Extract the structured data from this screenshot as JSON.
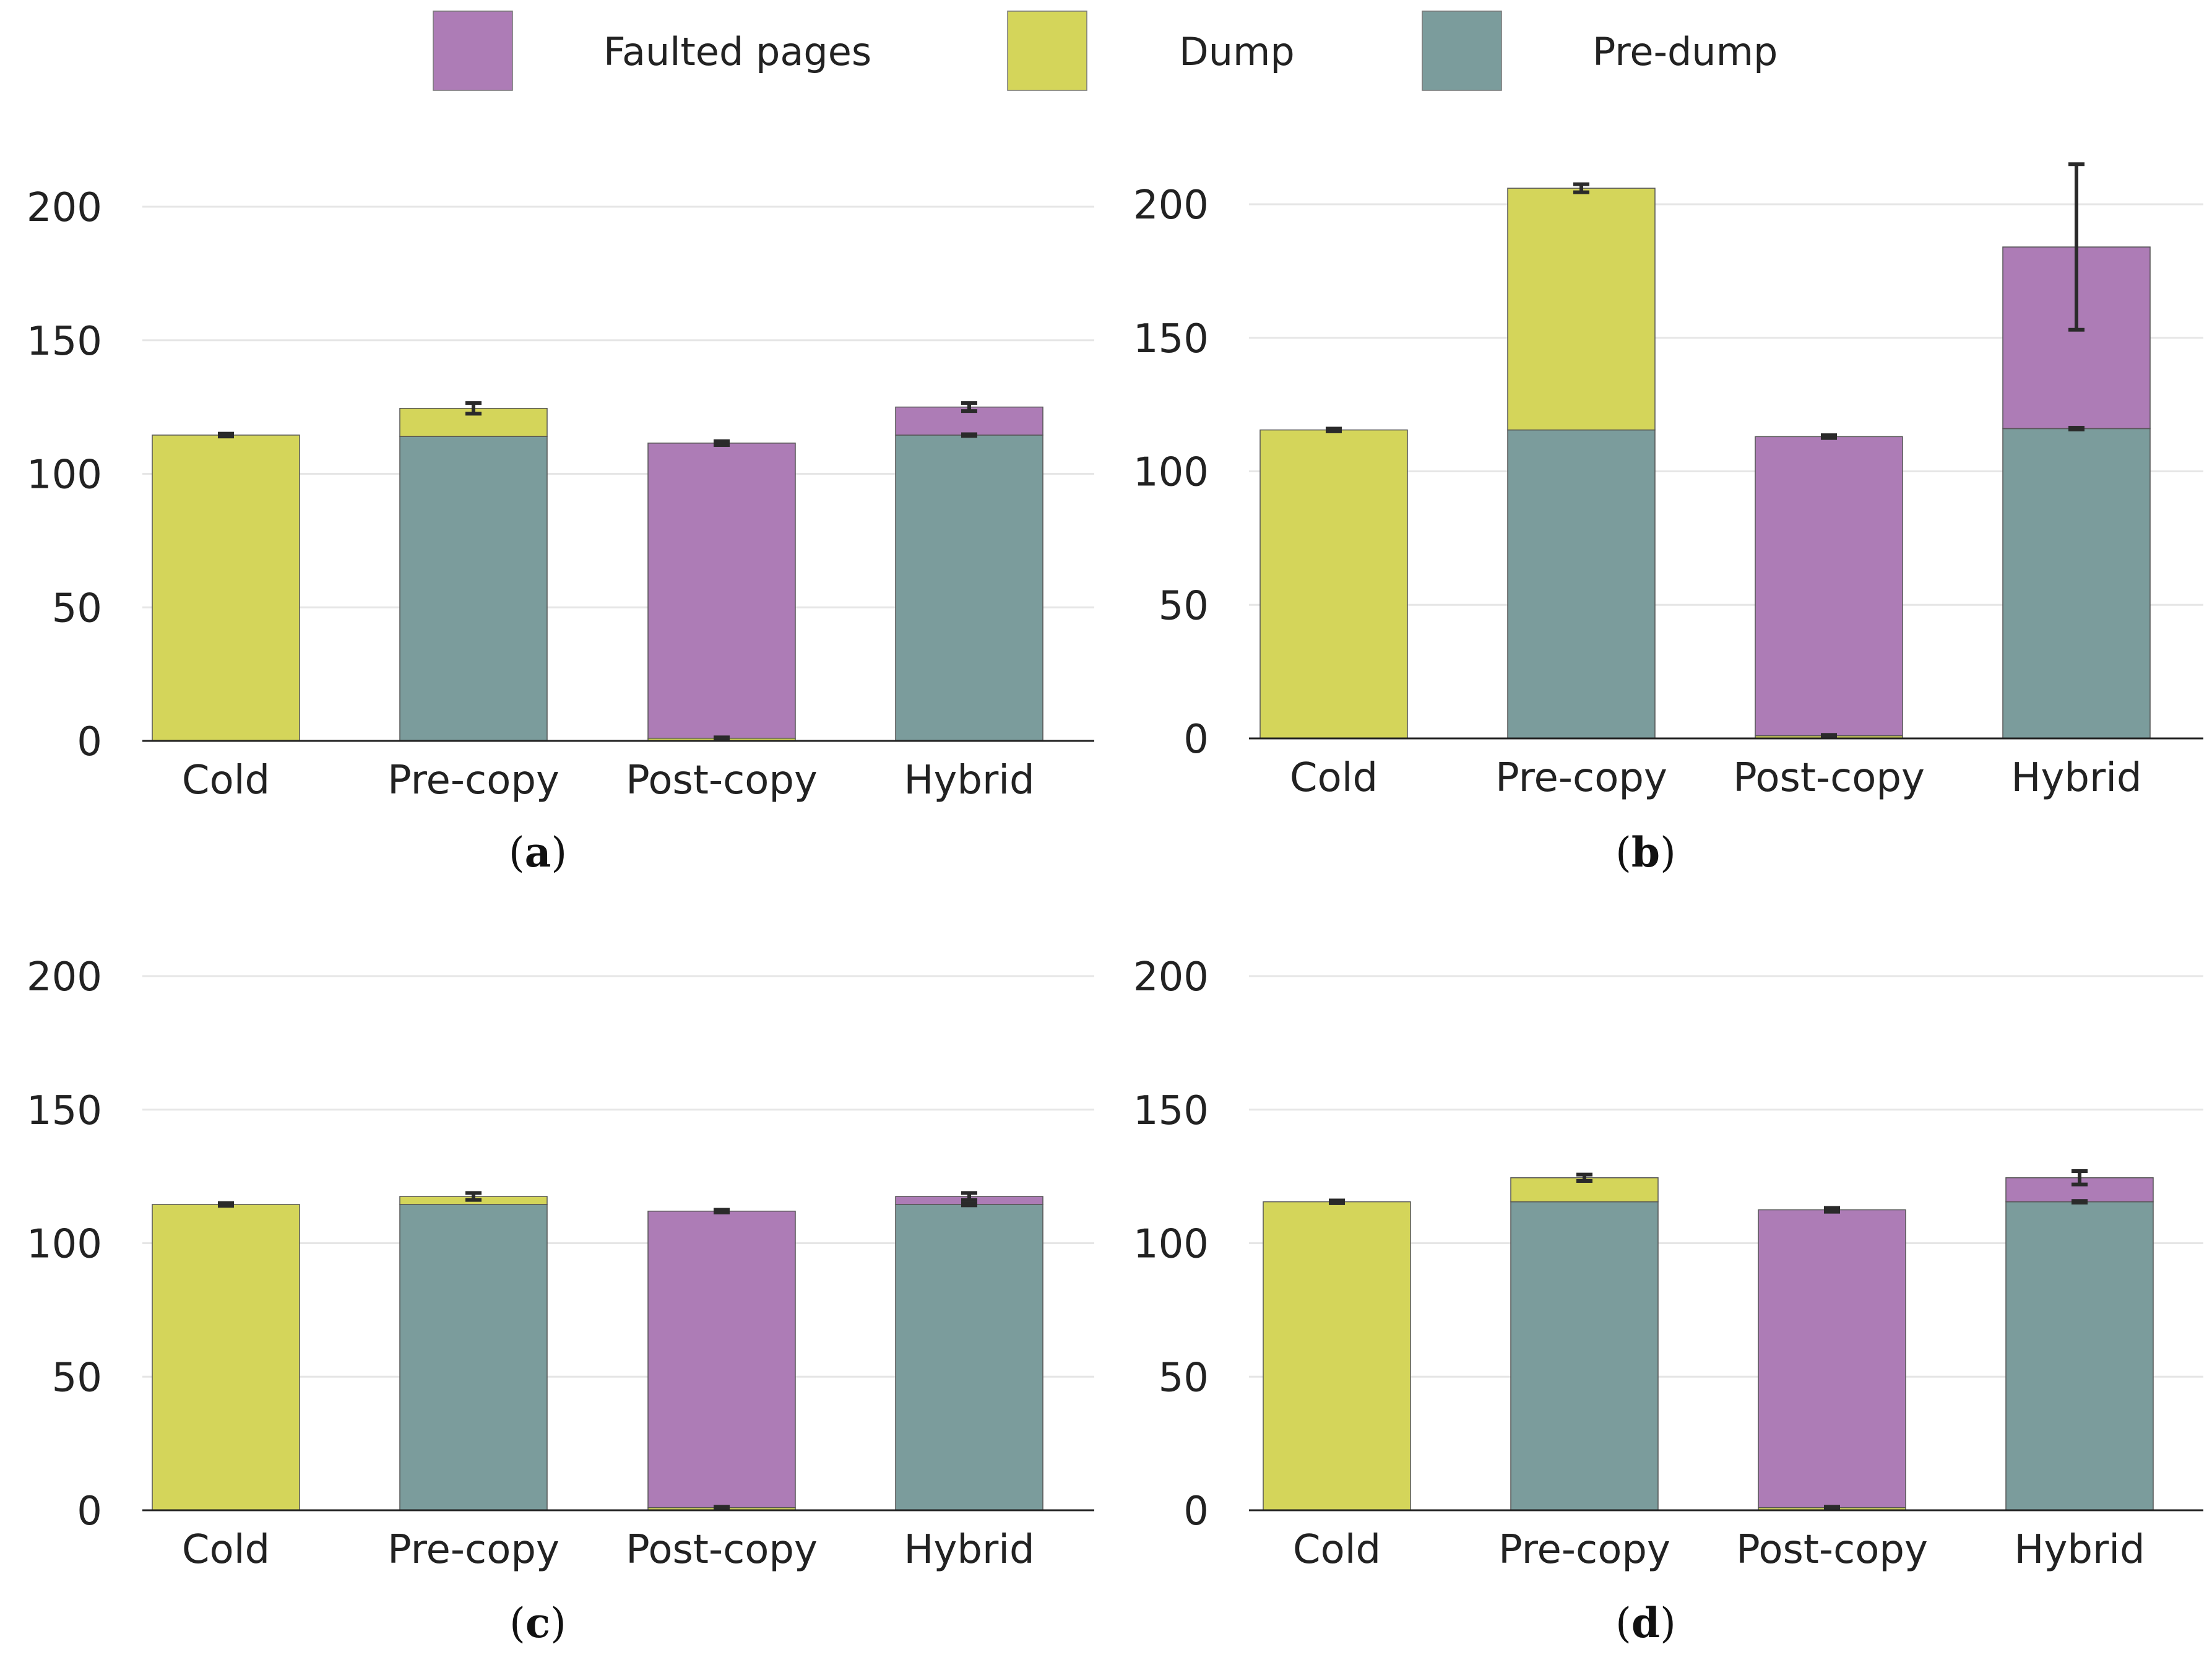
{
  "legend": {
    "items": [
      {
        "name": "Faulted pages",
        "color": "#ad7cb6"
      },
      {
        "name": "Dump",
        "color": "#d4d55a"
      },
      {
        "name": "Pre-dump",
        "color": "#7b9c9c"
      }
    ]
  },
  "colors": {
    "faulted": "#ad7cb6",
    "dump": "#d4d55a",
    "predump": "#7b9c9c",
    "axis": "#222222",
    "grid": "#e6e6e6",
    "error": "#2a2a2a"
  },
  "chart_data": [
    {
      "type": "bar",
      "stacked": true,
      "caption": {
        "open": "(",
        "letter": "a",
        "close": ")"
      },
      "categories": [
        "Cold",
        "Pre-copy",
        "Post-copy",
        "Hybrid"
      ],
      "yticks": [
        "0",
        "50",
        "100",
        "150",
        "200"
      ],
      "ylim": [
        0,
        220
      ],
      "series": [
        {
          "name": "Pre-dump",
          "values": [
            0,
            114,
            0,
            114.5
          ]
        },
        {
          "name": "Dump",
          "values": [
            114.5,
            10.5,
            1,
            0
          ]
        },
        {
          "name": "Faulted pages",
          "values": [
            0,
            0,
            110.5,
            10.5
          ]
        }
      ],
      "errors": [
        {
          "category": "Cold",
          "at": 114.5,
          "low": 114,
          "high": 115
        },
        {
          "category": "Pre-copy",
          "at": 124.5,
          "low": 122.5,
          "high": 126.5
        },
        {
          "category": "Post-copy",
          "at": 111.5,
          "low": 110.8,
          "high": 112.2
        },
        {
          "category": "Hybrid",
          "at": 125,
          "low": 123.5,
          "high": 126.5
        },
        {
          "category": "Hybrid",
          "at": 114.5,
          "low": 114.2,
          "high": 114.8
        },
        {
          "category": "Post-copy",
          "at": 1,
          "low": 0.7,
          "high": 1.3
        }
      ]
    },
    {
      "type": "bar",
      "stacked": true,
      "caption": {
        "open": "(",
        "letter": "b",
        "close": ")"
      },
      "categories": [
        "Cold",
        "Pre-copy",
        "Post-copy",
        "Hybrid"
      ],
      "yticks": [
        "0",
        "50",
        "100",
        "150",
        "200"
      ],
      "ylim": [
        0,
        220
      ],
      "series": [
        {
          "name": "Pre-dump",
          "values": [
            0,
            115.5,
            0,
            116
          ]
        },
        {
          "name": "Dump",
          "values": [
            115.5,
            90.5,
            1,
            0
          ]
        },
        {
          "name": "Faulted pages",
          "values": [
            0,
            0,
            112,
            68
          ]
        }
      ],
      "errors": [
        {
          "category": "Cold",
          "at": 115.5,
          "low": 115,
          "high": 116
        },
        {
          "category": "Pre-copy",
          "at": 206,
          "low": 204.5,
          "high": 207.5
        },
        {
          "category": "Post-copy",
          "at": 113,
          "low": 112.5,
          "high": 113.5
        },
        {
          "category": "Hybrid",
          "at": 184,
          "low": 153,
          "high": 215
        },
        {
          "category": "Hybrid",
          "at": 116,
          "low": 115.7,
          "high": 116.3
        },
        {
          "category": "Post-copy",
          "at": 1,
          "low": 0.7,
          "high": 1.3
        }
      ]
    },
    {
      "type": "bar",
      "stacked": true,
      "caption": {
        "open": "(",
        "letter": "c",
        "close": ")"
      },
      "categories": [
        "Cold",
        "Pre-copy",
        "Post-copy",
        "Hybrid"
      ],
      "yticks": [
        "0",
        "50",
        "100",
        "150",
        "200"
      ],
      "ylim": [
        0,
        220
      ],
      "series": [
        {
          "name": "Pre-dump",
          "values": [
            0,
            114.5,
            0,
            114.5
          ]
        },
        {
          "name": "Dump",
          "values": [
            114.5,
            3,
            1,
            0
          ]
        },
        {
          "name": "Faulted pages",
          "values": [
            0,
            0,
            111,
            3
          ]
        }
      ],
      "errors": [
        {
          "category": "Cold",
          "at": 114.5,
          "low": 114,
          "high": 115
        },
        {
          "category": "Pre-copy",
          "at": 117.5,
          "low": 116.2,
          "high": 118.8
        },
        {
          "category": "Post-copy",
          "at": 112,
          "low": 111.5,
          "high": 112.5
        },
        {
          "category": "Hybrid",
          "at": 117.5,
          "low": 116.2,
          "high": 118.8
        },
        {
          "category": "Hybrid",
          "at": 114.5,
          "low": 114.2,
          "high": 114.8
        },
        {
          "category": "Post-copy",
          "at": 1,
          "low": 0.7,
          "high": 1.3
        }
      ]
    },
    {
      "type": "bar",
      "stacked": true,
      "caption": {
        "open": "(",
        "letter": "d",
        "close": ")"
      },
      "categories": [
        "Cold",
        "Pre-copy",
        "Post-copy",
        "Hybrid"
      ],
      "yticks": [
        "0",
        "50",
        "100",
        "150",
        "200"
      ],
      "ylim": [
        0,
        220
      ],
      "series": [
        {
          "name": "Pre-dump",
          "values": [
            0,
            115.5,
            0,
            115.5
          ]
        },
        {
          "name": "Dump",
          "values": [
            115.5,
            9,
            1,
            0
          ]
        },
        {
          "name": "Faulted pages",
          "values": [
            0,
            0,
            111.5,
            9
          ]
        }
      ],
      "errors": [
        {
          "category": "Cold",
          "at": 115.5,
          "low": 115,
          "high": 116
        },
        {
          "category": "Pre-copy",
          "at": 124.5,
          "low": 123.3,
          "high": 125.7
        },
        {
          "category": "Post-copy",
          "at": 112.5,
          "low": 111.8,
          "high": 113.2
        },
        {
          "category": "Hybrid",
          "at": 124.5,
          "low": 122,
          "high": 127
        },
        {
          "category": "Hybrid",
          "at": 115.5,
          "low": 115.2,
          "high": 115.8
        },
        {
          "category": "Post-copy",
          "at": 1,
          "low": 0.7,
          "high": 1.3
        }
      ]
    }
  ]
}
